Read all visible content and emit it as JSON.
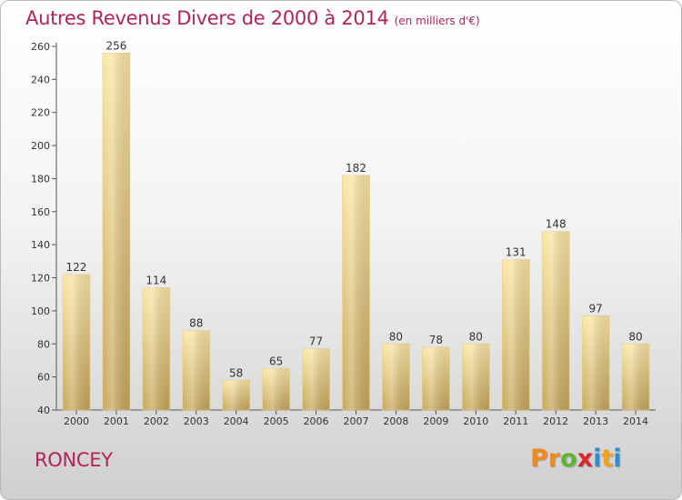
{
  "title": "Autres Revenus Divers de 2000 à 2014",
  "subtitle": "(en milliers d'€)",
  "commune": "RONCEY",
  "brand": {
    "letters": [
      "P",
      "r",
      "o",
      "x",
      "i",
      "t",
      "i"
    ],
    "colors": [
      "#f08a1e",
      "#f08a1e",
      "#5fb533",
      "#d8262f",
      "#2f8fd0",
      "#f0a21e",
      "#2f8fd0"
    ]
  },
  "colors": {
    "accent": "#b0245a",
    "bar_light": "#fbe6a6",
    "bar_dark": "#c7a75c"
  },
  "chart_data": {
    "type": "bar",
    "categories": [
      "2000",
      "2001",
      "2002",
      "2003",
      "2004",
      "2005",
      "2006",
      "2007",
      "2008",
      "2009",
      "2010",
      "2011",
      "2012",
      "2013",
      "2014"
    ],
    "values": [
      122,
      256,
      114,
      88,
      58,
      65,
      77,
      182,
      80,
      78,
      80,
      131,
      148,
      97,
      80
    ],
    "ylim": [
      40,
      260
    ],
    "yticks": [
      40,
      60,
      80,
      100,
      120,
      140,
      160,
      180,
      200,
      220,
      240,
      260
    ],
    "grid": false,
    "legend": "none"
  }
}
